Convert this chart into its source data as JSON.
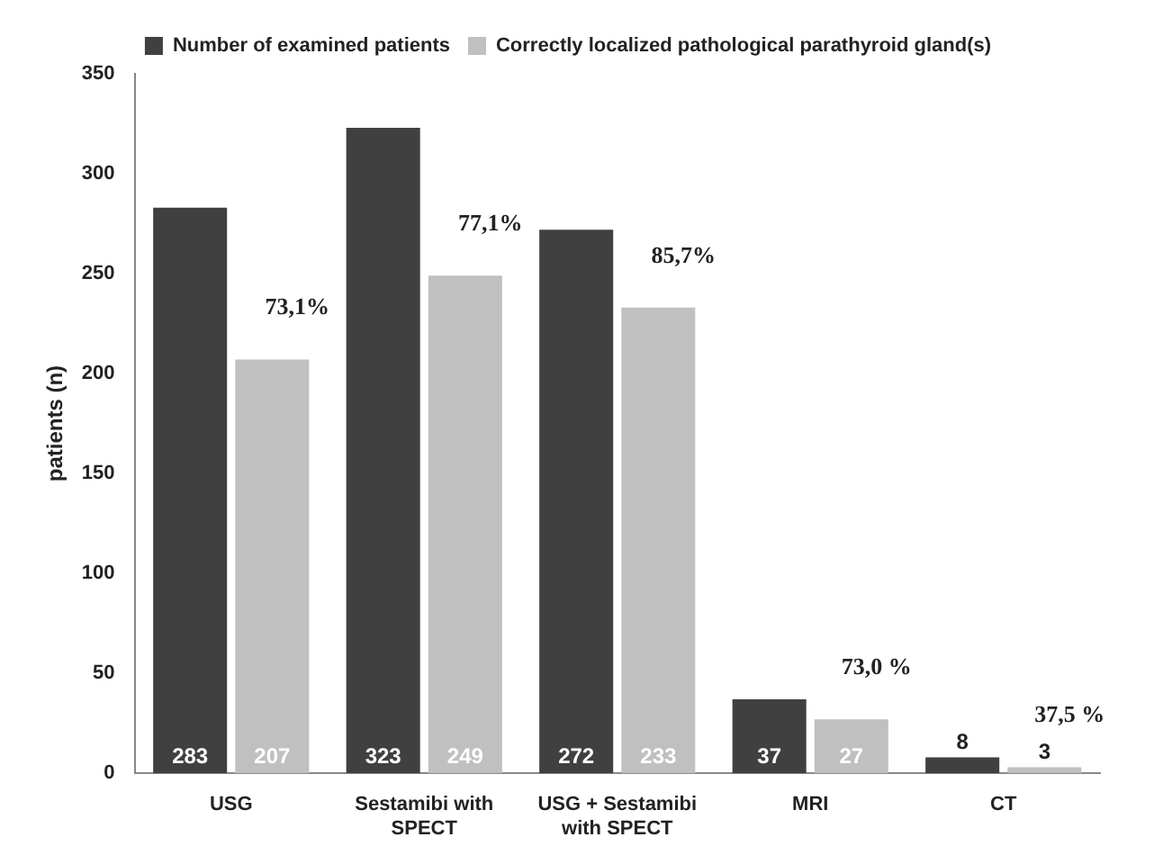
{
  "chart_data": {
    "type": "bar",
    "ylabel": "patients (n)",
    "categories": [
      "USG",
      "Sestamibi with SPECT",
      "USG + Sestamibi with SPECT",
      "MRI",
      "CT"
    ],
    "series": [
      {
        "name": "Number of examined patients",
        "color": "#404040",
        "values": [
          283,
          323,
          272,
          37,
          8
        ]
      },
      {
        "name": "Correctly localized pathological parathyroid gland(s)",
        "color": "#c0c0c0",
        "values": [
          207,
          249,
          233,
          27,
          3
        ]
      }
    ],
    "ylim": [
      0,
      350
    ],
    "yticks": [
      0,
      50,
      100,
      150,
      200,
      250,
      300,
      350
    ],
    "grid": false,
    "legend": "top",
    "data_labels": true,
    "annotations": [
      {
        "text": "73,1%",
        "x": "USG",
        "y": 207
      },
      {
        "text": "77,1%",
        "x": "Sestamibi with SPECT",
        "y": 249
      },
      {
        "text": "85,7%",
        "x": "USG + Sestamibi with SPECT",
        "y": 233
      },
      {
        "text": "73,0 %",
        "x": "MRI",
        "y": 27
      },
      {
        "text": "37,5 %",
        "x": "CT",
        "y": 3
      }
    ]
  }
}
